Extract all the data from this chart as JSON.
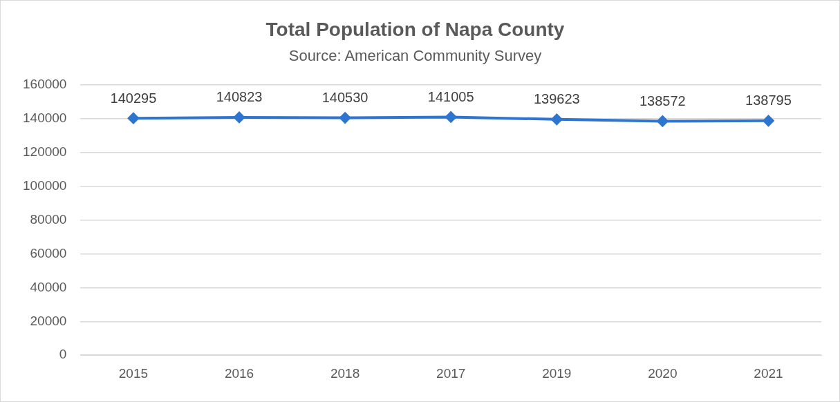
{
  "chart_data": {
    "type": "line",
    "title": "Total Population of Napa County",
    "subtitle": "Source: American Community Survey",
    "categories": [
      "2015",
      "2016",
      "2018",
      "2017",
      "2019",
      "2020",
      "2021"
    ],
    "series": [
      {
        "color": "#2e75d0",
        "values": [
          140295,
          140823,
          140530,
          141005,
          139623,
          138572,
          138795
        ]
      }
    ],
    "ylim": [
      0,
      160000
    ],
    "yticks": [
      0,
      20000,
      40000,
      60000,
      80000,
      100000,
      120000,
      140000,
      160000
    ],
    "grid": "y",
    "legend": false,
    "marker": "diamond",
    "line_style": "solid",
    "data_labels": true
  }
}
